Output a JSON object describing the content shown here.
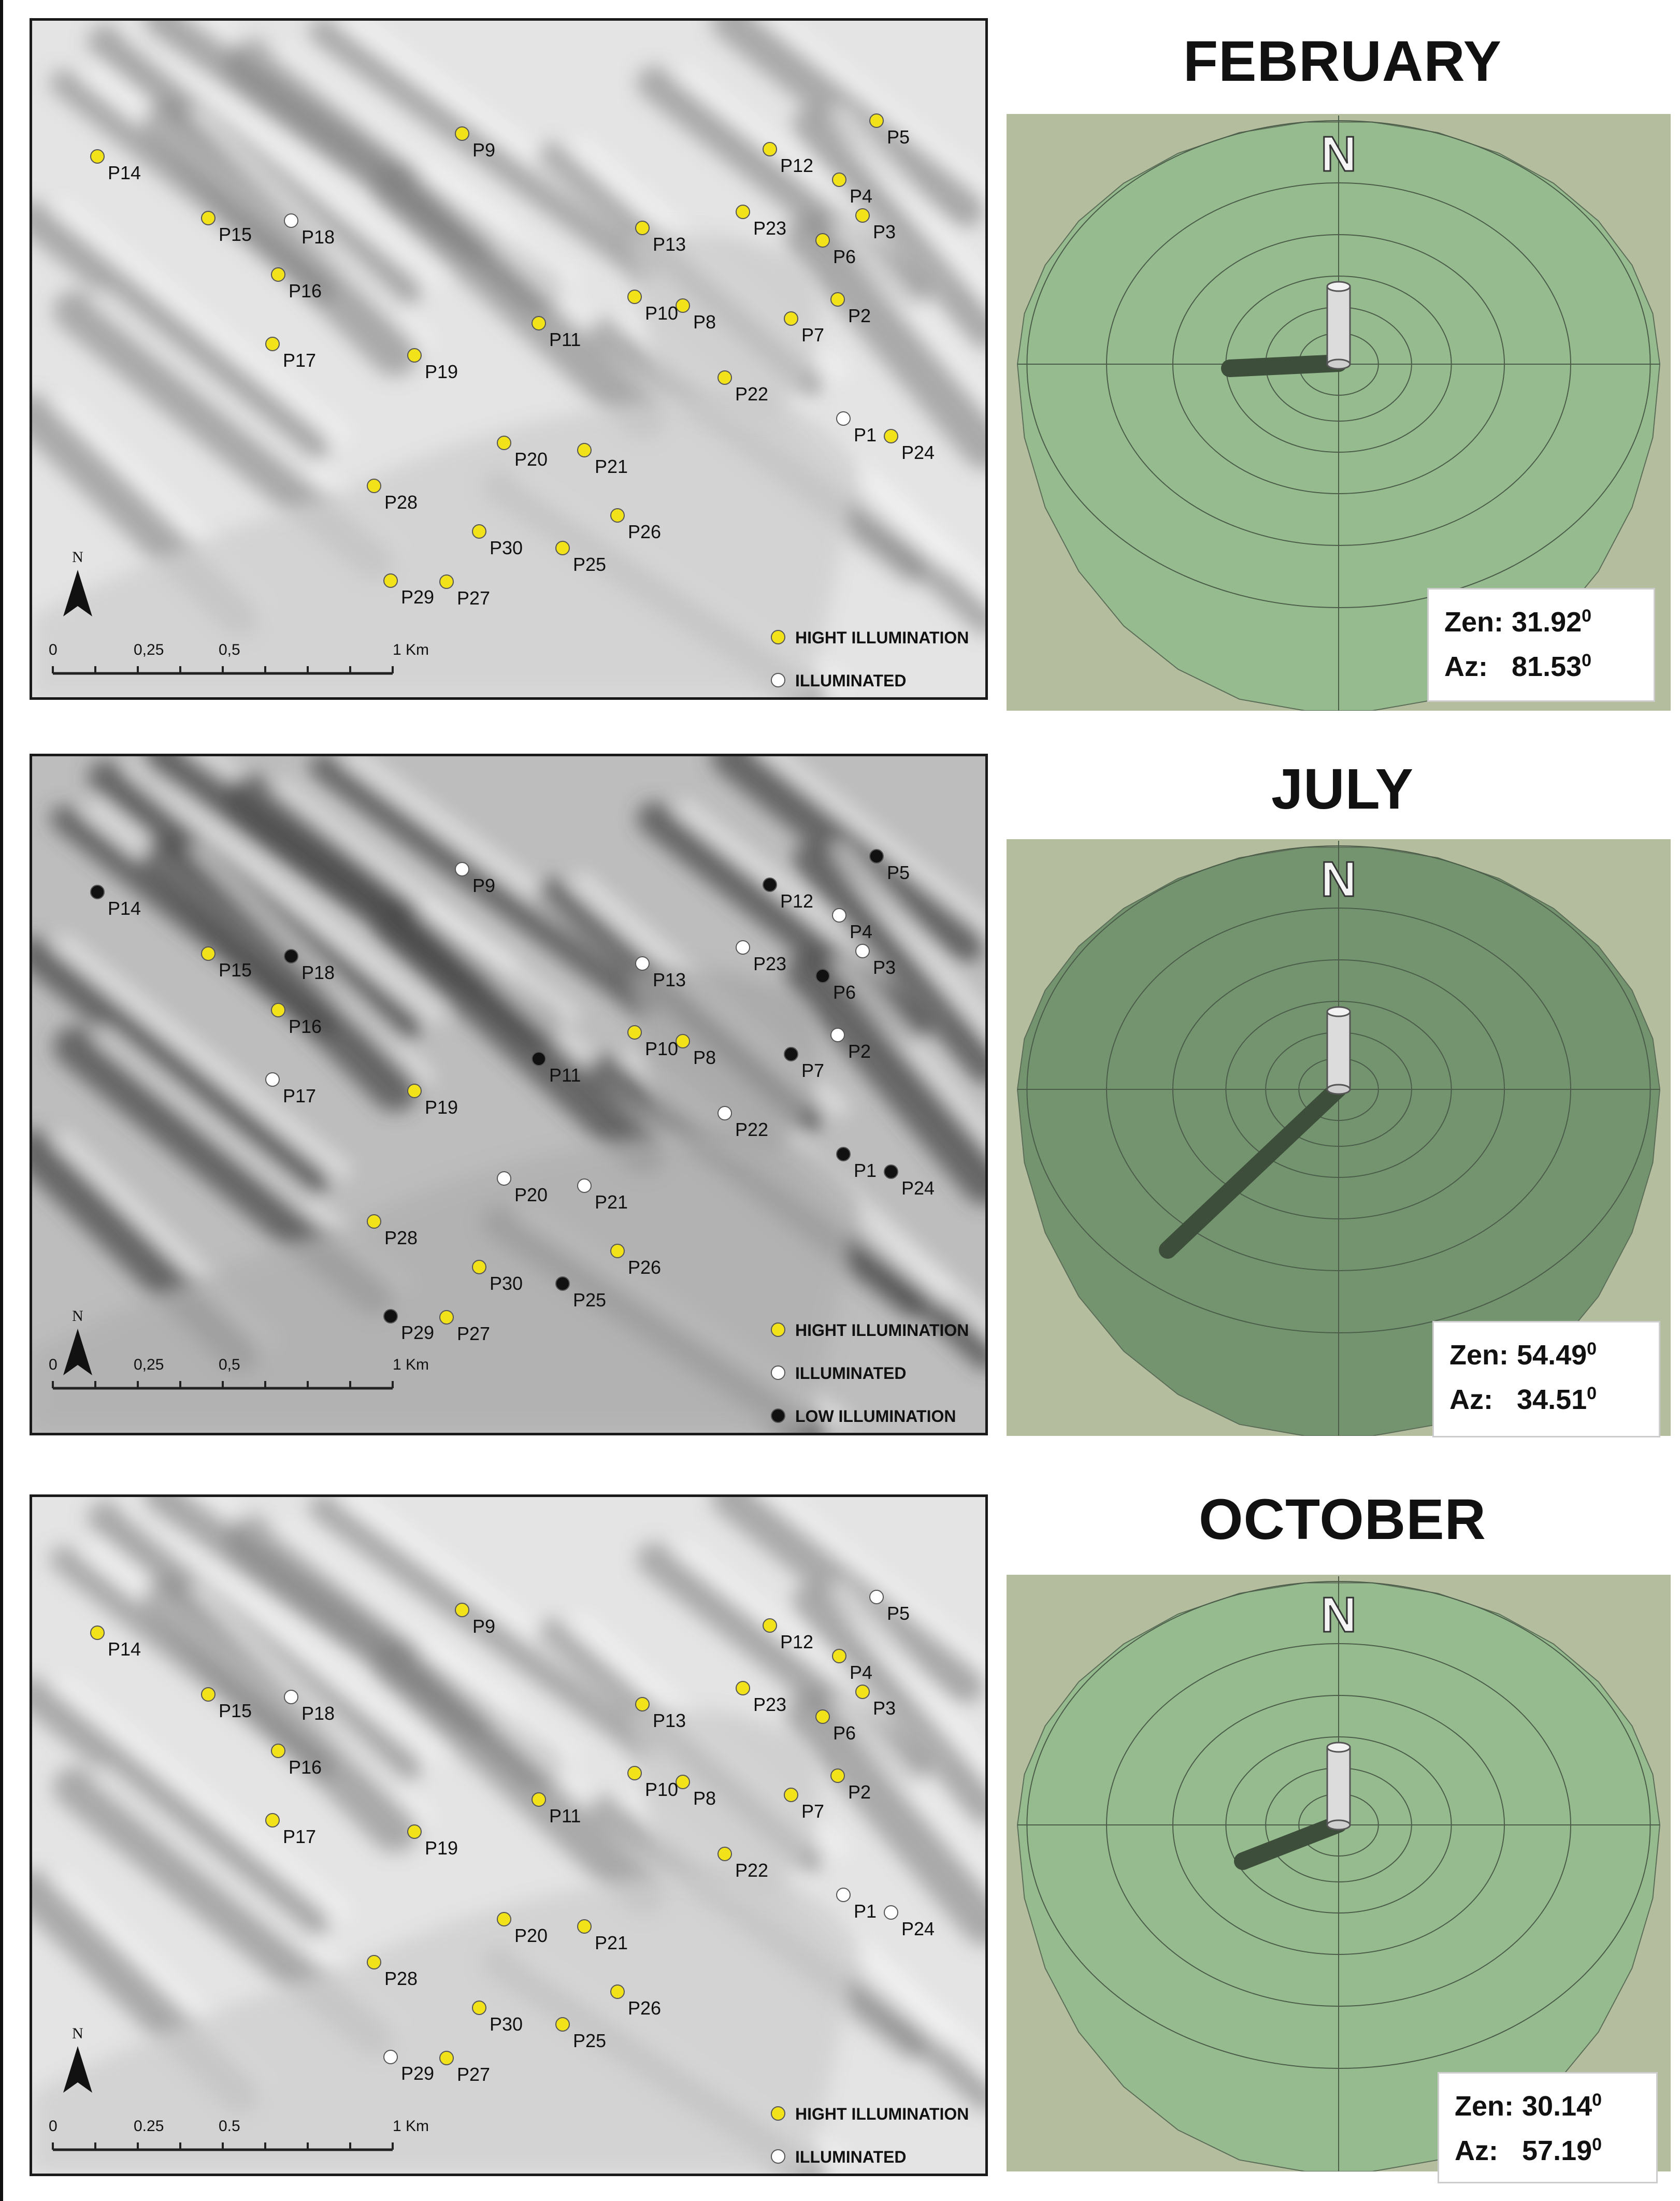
{
  "panels": [
    {
      "month": "FEBRUARY",
      "zen": "31.92",
      "az": "81.53",
      "degree_mark": "0",
      "shadow_dir": "west",
      "dome_tone": "light",
      "legend": [
        {
          "label": "HIGHT ILLUMINATION",
          "color": "#f2e21a"
        },
        {
          "label": "ILLUMINATED",
          "color": "#ffffff"
        }
      ],
      "points": {
        "P1": "ILLUMINATED",
        "P2": "HIGHT",
        "P3": "HIGHT",
        "P4": "HIGHT",
        "P5": "HIGHT",
        "P6": "HIGHT",
        "P7": "HIGHT",
        "P8": "HIGHT",
        "P9": "HIGHT",
        "P10": "HIGHT",
        "P11": "HIGHT",
        "P12": "HIGHT",
        "P13": "HIGHT",
        "P14": "HIGHT",
        "P15": "HIGHT",
        "P16": "HIGHT",
        "P17": "HIGHT",
        "P18": "ILLUMINATED",
        "P19": "HIGHT",
        "P20": "HIGHT",
        "P21": "HIGHT",
        "P22": "HIGHT",
        "P23": "HIGHT",
        "P24": "HIGHT",
        "P25": "HIGHT",
        "P26": "HIGHT",
        "P27": "HIGHT",
        "P28": "HIGHT",
        "P29": "HIGHT",
        "P30": "HIGHT"
      },
      "scale_labels": [
        "0",
        "0,25",
        "0,5",
        "1 Km"
      ]
    },
    {
      "month": "JULY",
      "zen": "54.49",
      "az": "34.51",
      "degree_mark": "0",
      "shadow_dir": "southwest",
      "dome_tone": "dark",
      "legend": [
        {
          "label": "HIGHT ILLUMINATION",
          "color": "#f2e21a"
        },
        {
          "label": "ILLUMINATED",
          "color": "#ffffff"
        },
        {
          "label": "LOW ILLUMINATION",
          "color": "#111111"
        }
      ],
      "points": {
        "P1": "LOW",
        "P2": "ILLUMINATED",
        "P3": "ILLUMINATED",
        "P4": "ILLUMINATED",
        "P5": "LOW",
        "P6": "LOW",
        "P7": "LOW",
        "P8": "HIGHT",
        "P9": "ILLUMINATED",
        "P10": "HIGHT",
        "P11": "LOW",
        "P12": "LOW",
        "P13": "ILLUMINATED",
        "P14": "LOW",
        "P15": "HIGHT",
        "P16": "HIGHT",
        "P17": "ILLUMINATED",
        "P18": "LOW",
        "P19": "HIGHT",
        "P20": "ILLUMINATED",
        "P21": "ILLUMINATED",
        "P22": "ILLUMINATED",
        "P23": "ILLUMINATED",
        "P24": "LOW",
        "P25": "LOW",
        "P26": "HIGHT",
        "P27": "HIGHT",
        "P28": "HIGHT",
        "P29": "LOW",
        "P30": "HIGHT"
      },
      "scale_labels": [
        "0",
        "0,25",
        "0,5",
        "1 Km"
      ]
    },
    {
      "month": "OCTOBER",
      "zen": "30.14",
      "az": "57.19",
      "degree_mark": "0",
      "shadow_dir": "west-southwest",
      "dome_tone": "light",
      "legend": [
        {
          "label": "HIGHT ILLUMINATION",
          "color": "#f2e21a"
        },
        {
          "label": "ILLUMINATED",
          "color": "#ffffff"
        }
      ],
      "points": {
        "P1": "ILLUMINATED",
        "P2": "HIGHT",
        "P3": "HIGHT",
        "P4": "HIGHT",
        "P5": "ILLUMINATED",
        "P6": "HIGHT",
        "P7": "HIGHT",
        "P8": "HIGHT",
        "P9": "HIGHT",
        "P10": "HIGHT",
        "P11": "HIGHT",
        "P12": "HIGHT",
        "P13": "HIGHT",
        "P14": "HIGHT",
        "P15": "HIGHT",
        "P16": "HIGHT",
        "P17": "HIGHT",
        "P18": "ILLUMINATED",
        "P19": "HIGHT",
        "P20": "HIGHT",
        "P21": "HIGHT",
        "P22": "HIGHT",
        "P23": "HIGHT",
        "P24": "ILLUMINATED",
        "P25": "HIGHT",
        "P26": "HIGHT",
        "P27": "HIGHT",
        "P28": "HIGHT",
        "P29": "ILLUMINATED",
        "P30": "HIGHT"
      },
      "scale_labels": [
        "0",
        "0.25",
        "0.5",
        "1 Km"
      ]
    }
  ],
  "common": {
    "north_letter": "N",
    "compass_letter": "N",
    "colors": {
      "HIGHT": "#f2e21a",
      "ILLUMINATED": "#ffffff",
      "LOW": "#111111",
      "dome_light": "#95bb8f",
      "dome_dark": "#73946f",
      "outer": "#b4bd9d"
    }
  }
}
